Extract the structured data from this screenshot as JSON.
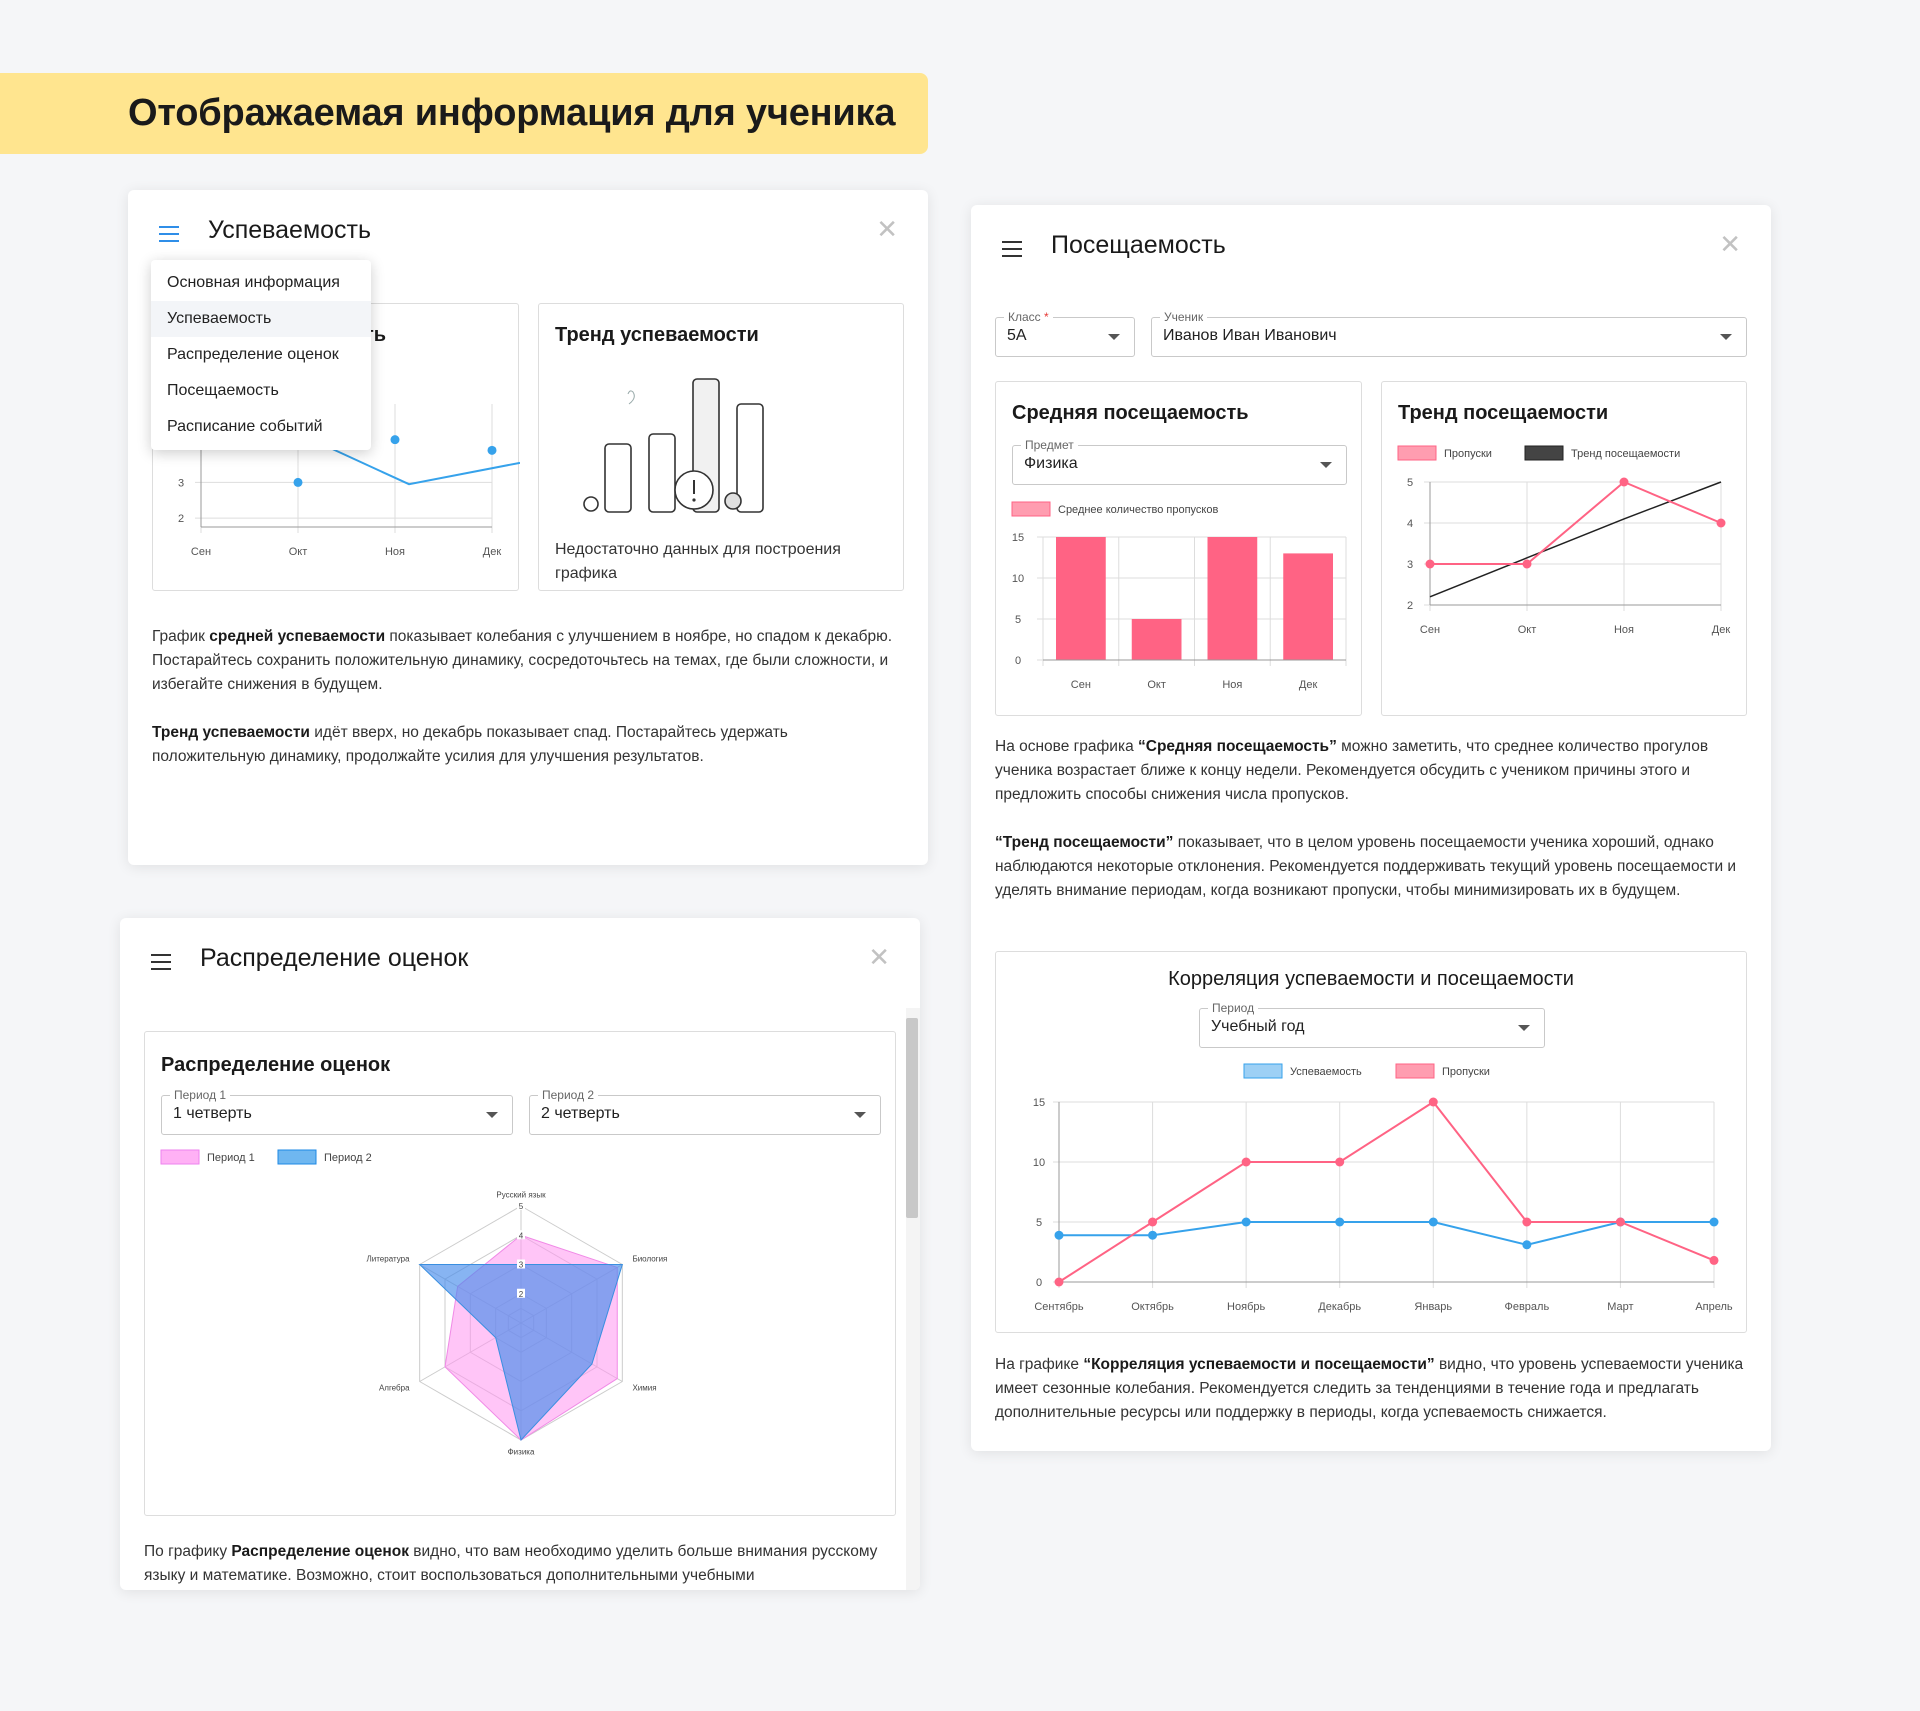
{
  "banner": {
    "title": "Отображаемая информация для ученика"
  },
  "performance_window": {
    "title": "Успеваемость",
    "menu": [
      "Основная информация",
      "Успеваемость",
      "Распределение оценок",
      "Посещаемость",
      "Расписание событий"
    ],
    "active_menu": "Успеваемость",
    "chart_title_tail": "ть",
    "trend_title": "Тренд успеваемости",
    "no_data": "Недостаточно данных для построения графика",
    "p1_pre": "График ",
    "p1_bold": "средней успеваемости",
    "p1_post": " показывает колебания с улучшением в ноябре, но спадом к декабрю. Постарайтесь сохранить положительную динамику, сосредоточьтесь на темах, где были сложности, и избегайте снижения в будущем.",
    "p2_bold": "Тренд успеваемости",
    "p2_post": " идёт вверх, но декабрь показывает спад. Постарайтесь удержать положительную динамику, продолжайте усилия для улучшения результатов."
  },
  "grades_window": {
    "title": "Распределение оценок",
    "card_title": "Распределение оценок",
    "period1_label": "Период 1",
    "period1_value": "1 четверть",
    "period2_label": "Период 2",
    "period2_value": "2 четверть",
    "p_pre": "По графику ",
    "p_bold": "Распределение оценок",
    "p_post": " видно, что вам необходимо уделить больше внимания русскому языку и математике. Возможно, стоит воспользоваться дополнительными учебными"
  },
  "attendance_window": {
    "title": "Посещаемость",
    "class_label": "Класс",
    "class_required": "*",
    "class_value": "5А",
    "student_label": "Ученик",
    "student_value": "Иванов Иван Иванович",
    "avg_title": "Средняя посещаемость",
    "subject_label": "Предмет",
    "subject_value": "Физика",
    "trend_title": "Тренд посещаемости",
    "corr_title": "Корреляция успеваемости и посещаемости",
    "period_label": "Период",
    "period_value": "Учебный год",
    "p1_pre": "На основе графика ",
    "p1_bold": "“Средняя посещаемость”",
    "p1_post": " можно заметить, что среднее количество прогулов ученика возрастает ближе к концу недели. Рекомендуется обсудить с учеником причины этого и предложить способы снижения числа пропусков.",
    "p2_bold": "“Тренд посещаемости”",
    "p2_post": " показывает, что в целом уровень посещаемости ученика хороший, однако наблюдаются некоторые отклонения. Рекомендуется поддерживать текущий уровень посещаемости и уделять внимание периодам, когда возникают пропуски, чтобы минимизировать их в будущем.",
    "p3_pre": "На графике ",
    "p3_bold": "“Корреляция успеваемости и посещаемости”",
    "p3_post": " видно, что уровень успеваемости ученика имеет сезонные колебания. Рекомендуется следить за тенденциями в течение года и предлагать дополнительные ресурсы или поддержку в периоды, когда успеваемость снижается."
  },
  "colors": {
    "pink": "#ff6384",
    "blue": "#36a2eb",
    "magenta_fill": "#ffb1f5",
    "dark": "#333333"
  },
  "chart_data": [
    {
      "id": "avg-performance",
      "type": "line",
      "categories": [
        "Сен",
        "Окт",
        "Ноя",
        "Дек"
      ],
      "y_ticks": [
        2,
        3
      ],
      "ylim": [
        1.75,
        5.2
      ],
      "series": [
        {
          "values": [
            null,
            3,
            4.2,
            3.9
          ]
        }
      ],
      "extra_points": [
        {
          "x": 3.25,
          "y": 3.55
        }
      ],
      "grid": true
    },
    {
      "id": "avg-attendance",
      "type": "bar",
      "categories": [
        "Сен",
        "Окт",
        "Ноя",
        "Дек"
      ],
      "values": [
        15,
        5,
        15,
        13
      ],
      "y_ticks": [
        0,
        5,
        10,
        15
      ],
      "ylim": [
        0,
        15
      ],
      "legend": [
        "Среднее количество пропусков"
      ],
      "grid": true
    },
    {
      "id": "attendance-trend",
      "type": "line",
      "categories": [
        "Сен",
        "Окт",
        "Ноя",
        "Дек"
      ],
      "y_ticks": [
        2,
        3,
        4,
        5
      ],
      "ylim": [
        2,
        5
      ],
      "series": [
        {
          "name": "Пропуски",
          "values": [
            3,
            3,
            5,
            4
          ]
        },
        {
          "name": "Тренд посещаемости",
          "values": [
            2.2,
            3.15,
            4.1,
            5
          ]
        }
      ],
      "grid": true
    },
    {
      "id": "correlation",
      "type": "line",
      "categories": [
        "Сентябрь",
        "Октябрь",
        "Ноябрь",
        "Декабрь",
        "Январь",
        "Февраль",
        "Март",
        "Апрель"
      ],
      "y_ticks": [
        0,
        5,
        10,
        15
      ],
      "ylim": [
        0,
        15
      ],
      "series": [
        {
          "name": "Успеваемость",
          "values": [
            3.9,
            3.9,
            5,
            5,
            5,
            3.1,
            5,
            5
          ]
        },
        {
          "name": "Пропуски",
          "values": [
            0,
            5,
            10,
            10,
            15,
            5,
            5,
            1.8
          ]
        }
      ],
      "grid": true
    },
    {
      "id": "grade-distribution",
      "type": "radar",
      "axes": [
        "Русский язык",
        "Биология",
        "Химия",
        "Физика",
        "Алгебра",
        "Литература"
      ],
      "r_ticks": [
        2,
        3,
        4,
        5
      ],
      "rlim": [
        1,
        5
      ],
      "series": [
        {
          "name": "Период 1",
          "values": [
            4,
            4.8,
            4.8,
            5,
            4,
            3.5
          ]
        },
        {
          "name": "Период 2",
          "values": [
            3,
            5,
            3.8,
            5,
            2,
            5
          ]
        }
      ]
    }
  ]
}
